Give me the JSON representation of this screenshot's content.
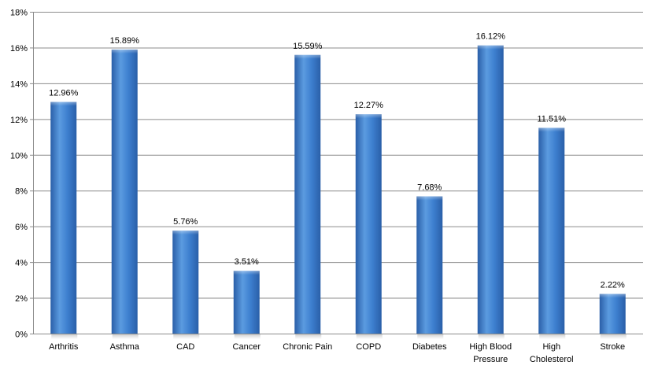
{
  "chart_data": {
    "type": "bar",
    "categories": [
      "Arthritis",
      "Asthma",
      "CAD",
      "Cancer",
      "Chronic Pain",
      "COPD",
      "Diabetes",
      "High Blood Pressure",
      "High Cholesterol",
      "Stroke"
    ],
    "category_lines": [
      [
        "Arthritis"
      ],
      [
        "Asthma"
      ],
      [
        "CAD"
      ],
      [
        "Cancer"
      ],
      [
        "Chronic Pain"
      ],
      [
        "COPD"
      ],
      [
        "Diabetes"
      ],
      [
        "High Blood",
        "Pressure"
      ],
      [
        "High",
        "Cholesterol"
      ],
      [
        "Stroke"
      ]
    ],
    "values": [
      12.96,
      15.89,
      5.76,
      3.51,
      15.59,
      12.27,
      7.68,
      16.12,
      11.51,
      2.22
    ],
    "data_labels": [
      "12.96%",
      "15.89%",
      "5.76%",
      "3.51%",
      "15.59%",
      "12.27%",
      "7.68%",
      "16.12%",
      "11.51%",
      "2.22%"
    ],
    "title": "",
    "xlabel": "",
    "ylabel": "",
    "ylim": [
      0,
      18
    ],
    "yticks": [
      0,
      2,
      4,
      6,
      8,
      10,
      12,
      14,
      16,
      18
    ],
    "ytick_labels": [
      "0%",
      "2%",
      "4%",
      "6%",
      "8%",
      "10%",
      "12%",
      "14%",
      "16%",
      "18%"
    ],
    "grid": true,
    "legend": "none",
    "colors": {
      "bar_light": "#5b9be0",
      "bar_mid": "#3d7fcf",
      "bar_dark": "#2a5fa8",
      "grid": "#8c8c8c",
      "axis": "#8c8c8c"
    }
  }
}
